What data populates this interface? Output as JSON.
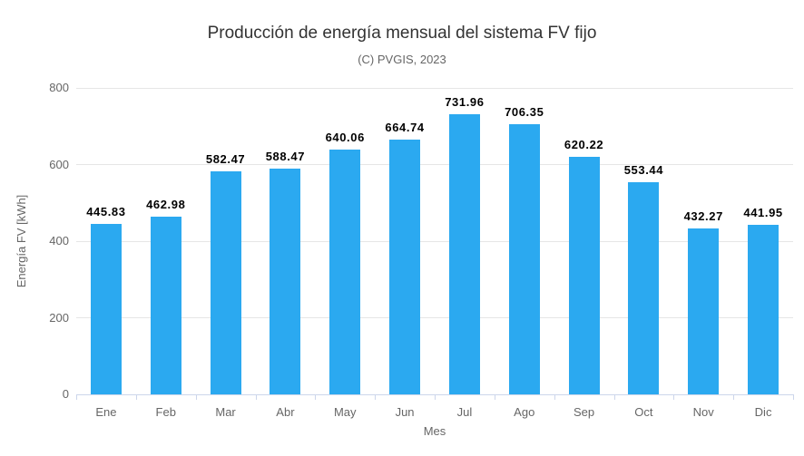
{
  "chart_data": {
    "type": "bar",
    "title": "Producción de energía mensual del sistema FV fijo",
    "subtitle": "(C) PVGIS, 2023",
    "xlabel": "Mes",
    "ylabel": "Energía FV [kWh]",
    "categories": [
      "Ene",
      "Feb",
      "Mar",
      "Abr",
      "May",
      "Jun",
      "Jul",
      "Ago",
      "Sep",
      "Oct",
      "Nov",
      "Dic"
    ],
    "values": [
      445.83,
      462.98,
      582.47,
      588.47,
      640.06,
      664.74,
      731.96,
      706.35,
      620.22,
      553.44,
      432.27,
      441.95
    ],
    "ylim": [
      0,
      800
    ],
    "yticks": [
      0,
      200,
      400,
      600,
      800
    ],
    "grid": true,
    "legend": "none",
    "data_labels": true
  },
  "colors": {
    "bar": "#2BA9F0",
    "gridline": "#e6e6e6",
    "axis_line": "#ccd6eb",
    "tick_label": "#666666",
    "title": "#333333",
    "subtitle": "#666666",
    "data_label": "#000000",
    "background": "#ffffff"
  }
}
